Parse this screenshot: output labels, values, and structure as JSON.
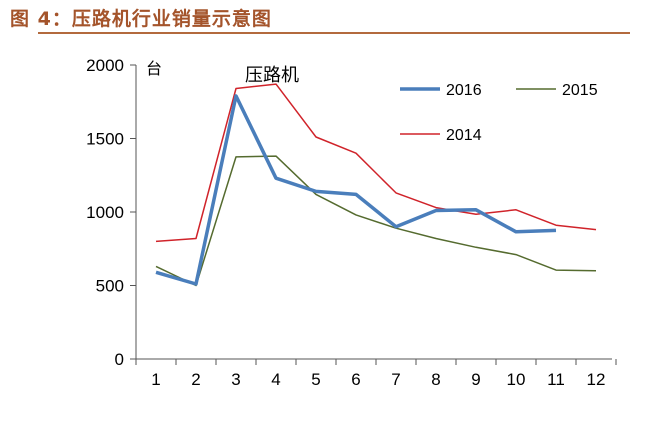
{
  "figure_title": "图 4：压路机行业销量示意图",
  "chart_data": {
    "type": "line",
    "title": "压路机",
    "ylabel": "台",
    "x": [
      1,
      2,
      3,
      4,
      5,
      6,
      7,
      8,
      9,
      10,
      11,
      12
    ],
    "xlim": [
      1,
      12
    ],
    "ylim": [
      0,
      2000
    ],
    "yticks": [
      0,
      500,
      1000,
      1500,
      2000
    ],
    "grid": false,
    "legend_position": "top-right",
    "series": [
      {
        "name": "2016",
        "color": "#4a7ebb",
        "values": [
          590,
          510,
          1790,
          1230,
          1140,
          1120,
          900,
          1010,
          1015,
          865,
          875,
          null
        ]
      },
      {
        "name": "2015",
        "color": "#556b2f",
        "values": [
          630,
          500,
          1375,
          1380,
          1120,
          980,
          890,
          820,
          760,
          710,
          605,
          600
        ]
      },
      {
        "name": "2014",
        "color": "#d0232a",
        "values": [
          800,
          820,
          1840,
          1870,
          1510,
          1400,
          1130,
          1030,
          985,
          1015,
          910,
          880
        ]
      }
    ]
  }
}
